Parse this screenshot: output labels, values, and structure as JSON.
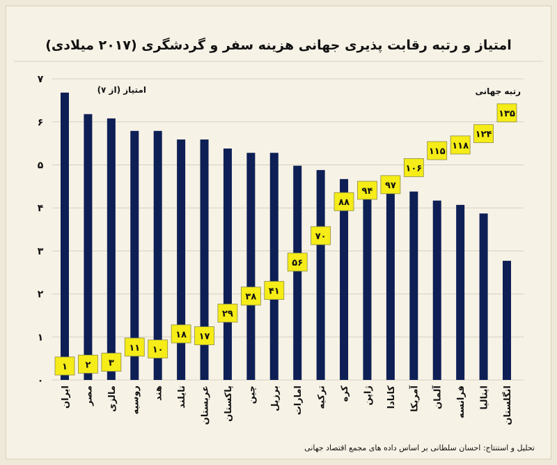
{
  "chart_data": {
    "type": "bar",
    "title": "امتیاز و رتبه رقابت پذیری جهانی هزینه سفر و گردشگری (۲۰۱۷ میلادی)",
    "ylabel": "امتیاز (از ۷)",
    "rank_label": "رتبه جهانی",
    "ylim": [
      0,
      7
    ],
    "yticks": [
      0,
      1,
      2,
      3,
      4,
      5,
      6,
      7
    ],
    "ytick_labels": [
      "۰",
      "۱",
      "۲",
      "۳",
      "۴",
      "۵",
      "۶",
      "۷"
    ],
    "grid": true,
    "categories": [
      "ایران",
      "مصر",
      "مالزی",
      "روسیه",
      "هند",
      "تایلند",
      "عربستان",
      "پاکستان",
      "چین",
      "برزیل",
      "امارات",
      "ترکیه",
      "کره",
      "ژاپن",
      "کانادا",
      "آمریکا",
      "آلمان",
      "فرانسه",
      "ایتالیا",
      "انگلستان"
    ],
    "values": [
      6.68,
      6.18,
      6.08,
      5.79,
      5.79,
      5.59,
      5.59,
      5.38,
      5.28,
      5.28,
      4.98,
      4.88,
      4.67,
      4.5,
      4.45,
      4.38,
      4.17,
      4.07,
      3.87,
      2.77
    ],
    "ranks": [
      1,
      2,
      3,
      11,
      10,
      18,
      17,
      29,
      38,
      41,
      56,
      70,
      88,
      94,
      97,
      106,
      115,
      118,
      124,
      135
    ],
    "rank_labels": [
      "۱",
      "۲",
      "۳",
      "۱۱",
      "۱۰",
      "۱۸",
      "۱۷",
      "۲۹",
      "۳۸",
      "۴۱",
      "۵۶",
      "۷۰",
      "۸۸",
      "۹۴",
      "۹۷",
      "۱۰۶",
      "۱۱۵",
      "۱۱۸",
      "۱۲۴",
      "۱۳۵"
    ],
    "bar_color": "#0d1f55",
    "rank_box_color": "#f5ec18"
  },
  "credit": "تحلیل و استنتاج: احسان سلطانی بر اساس داده های مجمع اقتصاد جهانی"
}
